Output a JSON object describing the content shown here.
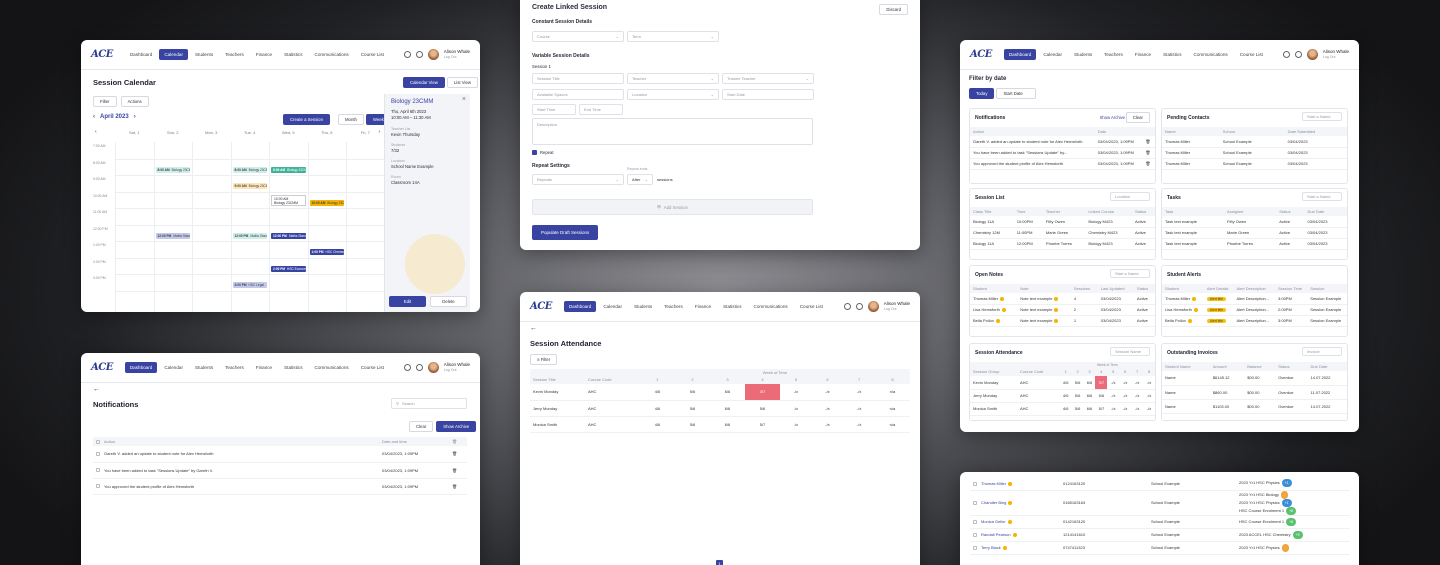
{
  "nav": {
    "logo": "ACE",
    "items": [
      "Dashboard",
      "Calendar",
      "Students",
      "Teachers",
      "Finance",
      "Statistics",
      "Communications",
      "Course List"
    ],
    "user_name": "Alison Whale",
    "user_sub": "Log Out"
  },
  "calendar": {
    "title": "Session Calendar",
    "view_calendar": "Calendar View",
    "view_list": "List View",
    "filter": "Filter",
    "actions": "Actions",
    "month": "April 2023",
    "create": "Create a Session",
    "modes": [
      "Month",
      "Week",
      "Day"
    ],
    "days": [
      "Sat, 1",
      "Sun, 2",
      "Mon, 3",
      "Tue, 4",
      "Wed, 5",
      "Thu, 6",
      "Fri, 7"
    ],
    "times": [
      "7:00 AM",
      "8:00 AM",
      "9:00 AM",
      "10:00 AM",
      "11:00 AM",
      "12:00 PM",
      "1:00 PM",
      "2:00 PM",
      "3:00 PM"
    ],
    "events": [
      {
        "d": 1,
        "t": "8:00 AM",
        "name": "Biology 23CMM",
        "c": "#cfeee6"
      },
      {
        "d": 3,
        "t": "8:00 AM",
        "name": "Biology 23CMM",
        "c": "#cfeee6"
      },
      {
        "d": 4,
        "t": "8:00 AM",
        "name": "Biology 23CMM",
        "c": "#3fb39a"
      },
      {
        "d": 3,
        "t": "9:00 AM",
        "name": "Biology 23CMM",
        "c": "#fde6b3"
      },
      {
        "d": 4,
        "t": "10:00 AM",
        "name": "Biology 23CMM",
        "c": "#3843a2"
      },
      {
        "d": 5,
        "t": "10:00 AM",
        "name": "Biology 23CMM",
        "c": "#f5b400"
      },
      {
        "d": 1,
        "t": "12:00 PM",
        "name": "Maths Standard",
        "c": "#c3c8e6"
      },
      {
        "d": 3,
        "t": "12:00 PM",
        "name": "Maths Standard",
        "c": "#cfeee6"
      },
      {
        "d": 4,
        "t": "12:00 PM",
        "name": "Maths Standard",
        "c": "#3843a2"
      },
      {
        "d": 5,
        "t": "1:00 PM",
        "name": "HSC Chemistry",
        "c": "#3843a2"
      },
      {
        "d": 4,
        "t": "2:00 PM",
        "name": "HSC Economics",
        "c": "#3843a2"
      },
      {
        "d": 3,
        "t": "3:00 PM",
        "name": "HSC Legal",
        "c": "#c3c8e6"
      }
    ],
    "inline_event": {
      "time": "10:00 AM",
      "name": "Biology 23CMM"
    },
    "detail": {
      "title": "Biology 23CMM",
      "date": "Thu, April 6th 2023",
      "time": "10:00 AM – 11:30 AM",
      "l1": "Teacher List",
      "v1": "Kevin Thursday",
      "l2": "Students",
      "v2": "7/32",
      "l3": "Location",
      "v3": "School Name Example",
      "l4": "Room",
      "v4": "Classroom 14A",
      "edit": "Edit",
      "delete": "Delete"
    }
  },
  "create": {
    "title": "Create Linked Session",
    "discard": "Discard",
    "constant": "Constant Session Details",
    "course": "Course",
    "term": "Term",
    "variable": "Variable Session Details",
    "session": "Session 1",
    "fields": [
      "Session Title",
      "Teacher",
      "Trainee Teacher",
      "Available Spaces",
      "Location",
      "Start Date",
      "Start Time",
      "End Time"
    ],
    "description": "Description",
    "repeat": "Repeat",
    "repeat_settings": "Repeat Settings",
    "repeat_sel": "Repeats",
    "ends_label": "Repeat ends",
    "after": "After",
    "sessions": "sessions",
    "add": "Add Session",
    "populate": "Populate Draft Sessions"
  },
  "dashboard": {
    "filter_title": "Filter by date",
    "today": "Today",
    "start_date": "Start Date",
    "notifications": {
      "title": "Notifications",
      "show_archive": "Show Archive",
      "clear": "Clear",
      "cols": [
        "Action",
        "Date"
      ],
      "rows": [
        [
          "Gareth V. added an update to student note for Alex Hemsforth",
          "03/04/2023, 1:09PM"
        ],
        [
          "You have been added to task \"Sessions Update\" by...",
          "03/04/2023, 1:09PM"
        ],
        [
          "You approved the student profile of Alex Hemsforth",
          "03/04/2023, 1:09PM"
        ]
      ]
    },
    "pending": {
      "title": "Pending Contacts",
      "search": "Start a Name",
      "cols": [
        "Name",
        "School",
        "Date Submitted"
      ],
      "rows": [
        [
          "Thomas Miller",
          "School Example",
          "03/04/2023"
        ],
        [
          "Thomas Miller",
          "School Example",
          "03/04/2023"
        ],
        [
          "Thomas Miller",
          "School Example",
          "03/04/2023"
        ]
      ]
    },
    "session_list": {
      "title": "Session List",
      "search": "Location",
      "cols": [
        "Class Title",
        "Time",
        "Teacher",
        "Linked Course",
        "Status"
      ],
      "rows": [
        [
          "Biology 11A",
          "10:00PM",
          "Fifty Owen",
          "Biology M423",
          "Active"
        ],
        [
          "Chemistry 12M",
          "11:00PM",
          "Marie Green",
          "Chemistry M423",
          "Active"
        ],
        [
          "Biology 11A",
          "12:00PM",
          "Phoebe Torres",
          "Biology M423",
          "Active"
        ]
      ]
    },
    "tasks": {
      "title": "Tasks",
      "search": "Start a Name",
      "cols": [
        "Task",
        "Assignee",
        "Status",
        "Due Date"
      ],
      "rows": [
        [
          "Task text example",
          "Fifty Owen",
          "Active",
          "03/04/2023"
        ],
        [
          "Task text example",
          "Marie Green",
          "Active",
          "03/04/2023"
        ],
        [
          "Task text example",
          "Phoebe Torres",
          "Active",
          "03/04/2023"
        ]
      ]
    },
    "open_notes": {
      "title": "Open Notes",
      "search": "Start a Name",
      "cols": [
        "Student",
        "Note",
        "Sessions",
        "Last Updated",
        "Status"
      ],
      "rows": [
        [
          "Thomas Miller",
          "Note text example",
          "4",
          "03/04/2023",
          "Active"
        ],
        [
          "Lisa Hemsforth",
          "Note text example",
          "2",
          "03/04/2023",
          "Active"
        ],
        [
          "Bella Pollux",
          "Note text example",
          "1",
          "03/04/2023",
          "Active"
        ]
      ]
    },
    "alerts": {
      "title": "Student Alerts",
      "cols": [
        "Student",
        "Alert Details",
        "Alert Description",
        "Session Time",
        "Session"
      ],
      "badge": "Alert title",
      "rows": [
        [
          "Thomas Miller",
          "Alert Description...",
          "3:00PM",
          "Session Example"
        ],
        [
          "Lisa Hemsforth",
          "Alert Description...",
          "2:00PM",
          "Session Example"
        ],
        [
          "Bella Pollux",
          "Alert Description...",
          "3:00PM",
          "Session Example"
        ]
      ]
    },
    "attendance": {
      "title": "Session Attendance",
      "search": "Session Name",
      "cols": [
        "Session Group",
        "Course Code"
      ],
      "weeks": "Week of Term",
      "wk": [
        "1",
        "2",
        "3",
        "4",
        "5",
        "6",
        "7",
        "8"
      ],
      "rows": [
        [
          "Kevin Monday",
          "AHC",
          [
            "4/6",
            "5/6",
            "6/6",
            "3/7",
            "-/x",
            "-/x",
            "-/x",
            "-/x"
          ]
        ],
        [
          "Jerry Monday",
          "AHC",
          [
            "4/6",
            "5/6",
            "6/6",
            "5/6",
            "-/x",
            "-/x",
            "-/x",
            "-/x"
          ]
        ],
        [
          "Monica Smith",
          "AHC",
          [
            "4/6",
            "5/6",
            "6/6",
            "5/7",
            "-/x",
            "-/x",
            "-/x",
            "-/x"
          ]
        ]
      ]
    },
    "invoices": {
      "title": "Outstanding Invoices",
      "search": "Invoice",
      "cols": [
        "Student Name",
        "Amount",
        "Balance",
        "Status",
        "Due Date"
      ],
      "rows": [
        [
          "Name",
          "$6145.12",
          "$00.00",
          "Overdue",
          "14.07.2022"
        ],
        [
          "Name",
          "$860.00",
          "$00.00",
          "Overdue",
          "11.07.2022"
        ],
        [
          "Name",
          "$1103.00",
          "$00.00",
          "Overdue",
          "14.07.2022"
        ]
      ]
    }
  },
  "notif_page": {
    "title": "Notifications",
    "search": "Search",
    "clear": "Clear",
    "show_archive": "Show Archive",
    "cols": [
      "Action",
      "Date and time"
    ],
    "rows": [
      [
        "Gareth V. added an update to student note for Alex Hemsforth",
        "03/04/2023, 1:09PM"
      ],
      [
        "You have been added to task \"Sessions Update\" by Gareth V.",
        "03/04/2023, 1:09PM"
      ],
      [
        "You approved the student profile of Alex Hemsforth",
        "03/04/2023, 1:09PM"
      ]
    ]
  },
  "attend_page": {
    "title": "Session Attendance",
    "filter": "Filter",
    "week_label": "Week of Term",
    "cols": [
      "Session Title",
      "Course Code"
    ],
    "wk": [
      "1",
      "2",
      "3",
      "4",
      "5",
      "6",
      "7",
      "8"
    ],
    "rows": [
      [
        "Kevin Monday",
        "AHC",
        [
          "4/6",
          "5/6",
          "6/6",
          "3/7",
          "-/x",
          "-/x",
          "-/x",
          "n/a"
        ]
      ],
      [
        "Jerry Monday",
        "AHC",
        [
          "4/6",
          "5/6",
          "6/6",
          "5/6",
          "-/x",
          "-/x",
          "-/x",
          "n/a"
        ]
      ],
      [
        "Monica Smith",
        "AHC",
        [
          "4/6",
          "5/6",
          "6/6",
          "5/7",
          "-/x",
          "-/x",
          "-/x",
          "n/a"
        ]
      ]
    ]
  },
  "students": {
    "rows": [
      {
        "name": "Thomas Miller",
        "phone": "0124163120",
        "school": "School Example",
        "courses": [
          "2023 Yr1 HSC Physics"
        ],
        "pills": [
          {
            "t": "+1",
            "c": "#3a8fd8"
          }
        ]
      },
      {
        "name": "Chandler Bing",
        "phone": "0165163163",
        "school": "School Example",
        "courses": [
          "2023 Yr1 HSC Biology",
          "2023 Yr1 HSC Physics",
          "HSC Course Enrolment 1"
        ],
        "pills": [
          {
            "t": "-",
            "c": "#f2a33a"
          },
          {
            "t": "+1",
            "c": "#3a8fd8"
          },
          {
            "t": "+8",
            "c": "#5ac26f"
          }
        ]
      },
      {
        "name": "Monica Geller",
        "phone": "0142163120",
        "school": "School Example",
        "courses": [
          "HSC Course Enrolment 1"
        ],
        "pills": [
          {
            "t": "+8",
            "c": "#5ac26f"
          }
        ]
      },
      {
        "name": "Randall Pearson",
        "phone": "1214141610",
        "school": "School Example",
        "courses": [
          "2023 ACCEL HSC Chemistry"
        ],
        "pills": [
          {
            "t": "+9",
            "c": "#5ac26f"
          }
        ]
      },
      {
        "name": "Terry Black",
        "phone": "0747411323",
        "school": "School Example",
        "courses": [
          "2023 Yr1 HSC Physics"
        ],
        "pills": [
          {
            "t": "-",
            "c": "#f2a33a"
          }
        ]
      }
    ]
  },
  "pager": "1"
}
